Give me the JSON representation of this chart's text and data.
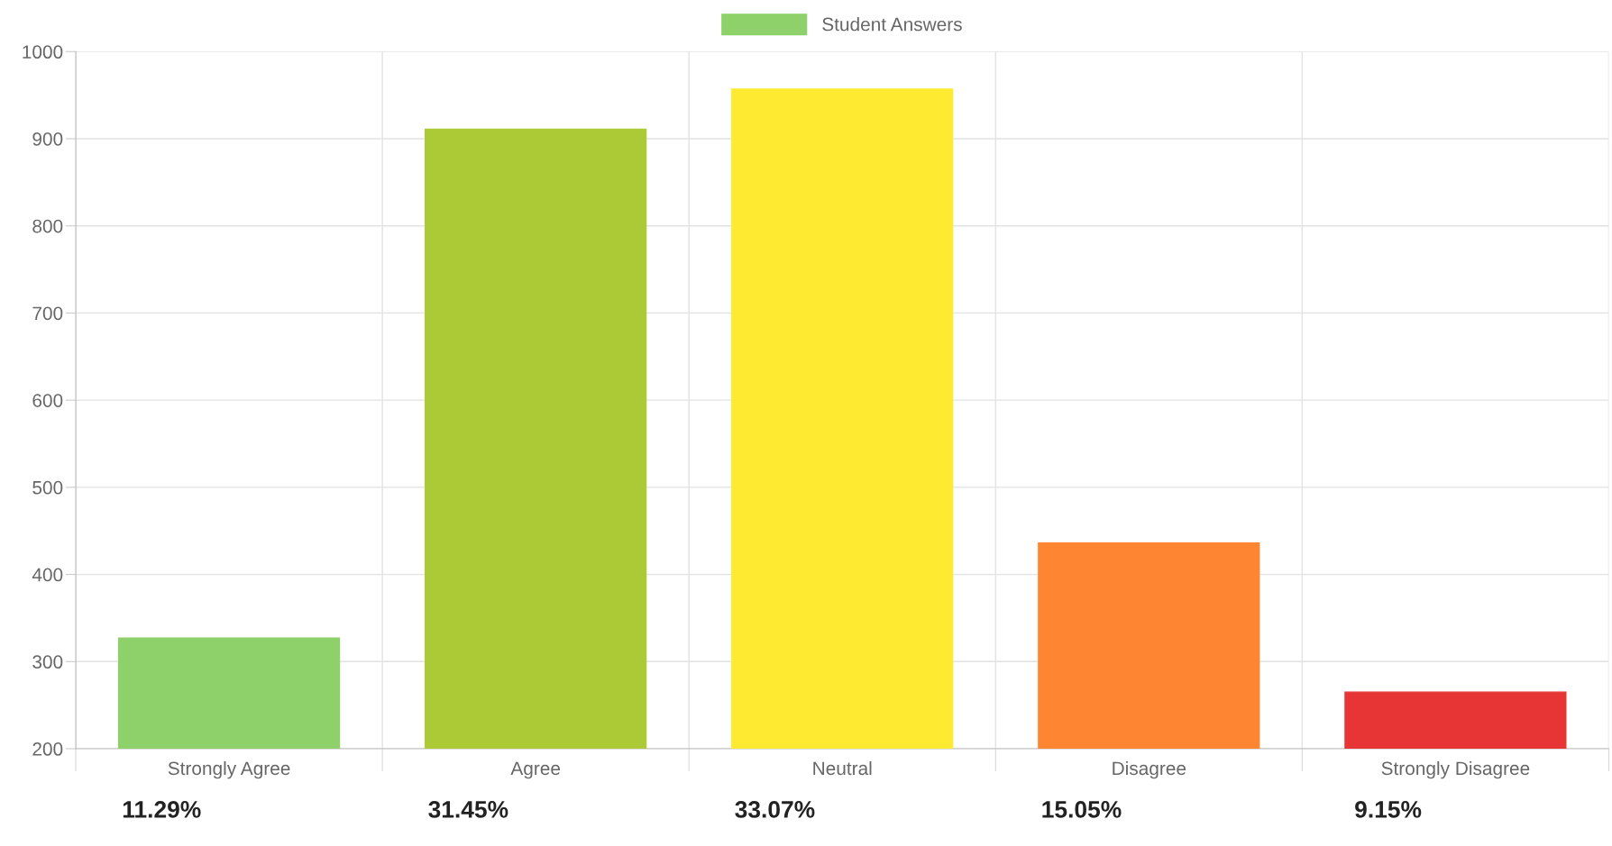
{
  "chart_data": {
    "type": "bar",
    "categories": [
      "Strongly Agree",
      "Agree",
      "Neutral",
      "Disagree",
      "Strongly Disagree"
    ],
    "series": [
      {
        "name": "Student Answers",
        "color": "#8ed16b",
        "colors": [
          "#8ed16b",
          "#acca35",
          "#feea31",
          "#fe8632",
          "#e73435"
        ],
        "values": [
          327,
          911,
          957,
          436,
          265
        ]
      }
    ],
    "ylim": [
      200,
      1000
    ],
    "yticks": [
      200,
      300,
      400,
      500,
      600,
      700,
      800,
      900,
      1000
    ],
    "grid": true,
    "legend": "top",
    "annotations": [
      "11.29%",
      "31.45%",
      "33.07%",
      "15.05%",
      "9.15%"
    ]
  }
}
